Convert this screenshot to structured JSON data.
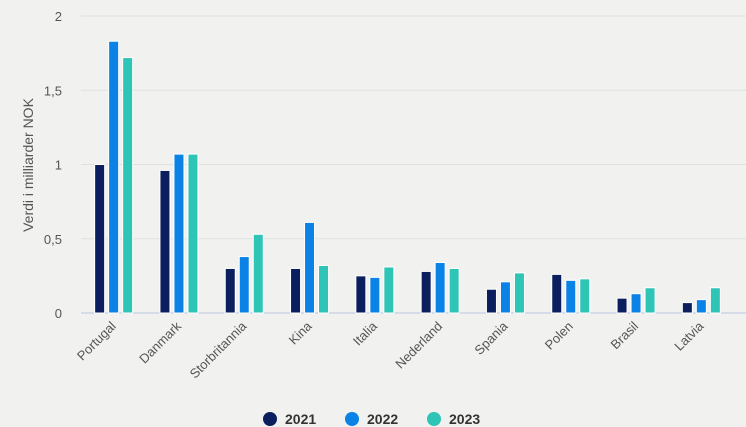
{
  "chart_data": {
    "type": "bar",
    "title": "",
    "xlabel": "",
    "ylabel": "Verdi i milliarder NOK",
    "ylim": [
      0,
      2
    ],
    "yticks": [
      0,
      0.5,
      1,
      1.5,
      2
    ],
    "ytick_labels": [
      "0",
      "0,5",
      "1",
      "1,5",
      "2"
    ],
    "grid": true,
    "legend_position": "bottom",
    "categories": [
      "Portugal",
      "Danmark",
      "Storbritannia",
      "Kina",
      "Italia",
      "Nederland",
      "Spania",
      "Polen",
      "Brasil",
      "Latvia"
    ],
    "series": [
      {
        "name": "2021",
        "color": "#0b1e5e",
        "values": [
          1.0,
          0.96,
          0.3,
          0.3,
          0.25,
          0.28,
          0.16,
          0.26,
          0.1,
          0.07
        ]
      },
      {
        "name": "2022",
        "color": "#0a82e6",
        "values": [
          1.83,
          1.07,
          0.38,
          0.61,
          0.24,
          0.34,
          0.21,
          0.22,
          0.13,
          0.09
        ]
      },
      {
        "name": "2023",
        "color": "#2ec4b6",
        "values": [
          1.72,
          1.07,
          0.53,
          0.32,
          0.31,
          0.3,
          0.27,
          0.23,
          0.17,
          0.17
        ]
      }
    ]
  }
}
